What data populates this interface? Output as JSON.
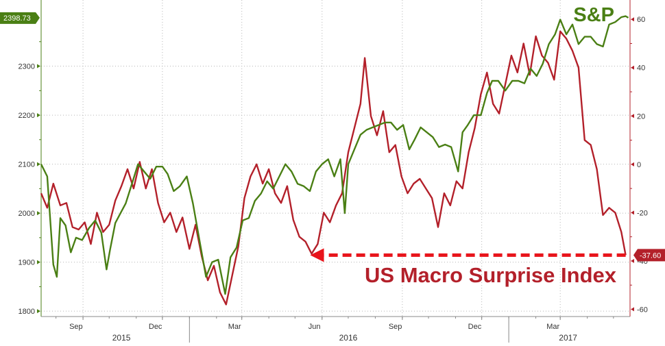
{
  "chart_data": {
    "type": "line",
    "title": "",
    "x_range": [
      "2015-07-15",
      "2017-05-20"
    ],
    "left_axis": {
      "ticks": [
        1800,
        1900,
        2000,
        2100,
        2200,
        2300
      ],
      "ylim": [
        1789,
        2435
      ]
    },
    "right_axis": {
      "ticks": [
        -60,
        -40,
        -20,
        0,
        20,
        40,
        60
      ],
      "ylim": [
        -63,
        68
      ]
    },
    "x_month_labels": [
      {
        "date": "2015-09-01",
        "label": "Sep"
      },
      {
        "date": "2015-12-01",
        "label": "Dec"
      },
      {
        "date": "2016-03-01",
        "label": "Mar"
      },
      {
        "date": "2016-06-01",
        "label": "Jun"
      },
      {
        "date": "2016-09-01",
        "label": "Sep"
      },
      {
        "date": "2016-12-01",
        "label": "Dec"
      },
      {
        "date": "2017-03-01",
        "label": "Mar"
      }
    ],
    "x_year_labels": [
      {
        "date": "2015-10-15",
        "label": "2015"
      },
      {
        "date": "2016-07-01",
        "label": "2016"
      },
      {
        "date": "2017-03-10",
        "label": "2017"
      }
    ],
    "year_boundaries": [
      "2016-01-01",
      "2017-01-01"
    ],
    "grid": true,
    "series": [
      {
        "name": "S&P",
        "axis": "left",
        "color": "#4a7f14",
        "last_value_label": "2398.73",
        "points": [
          [
            "2015-07-15",
            2100
          ],
          [
            "2015-07-22",
            2075
          ],
          [
            "2015-07-29",
            1895
          ],
          [
            "2015-08-02",
            1870
          ],
          [
            "2015-08-06",
            1990
          ],
          [
            "2015-08-12",
            1975
          ],
          [
            "2015-08-18",
            1920
          ],
          [
            "2015-08-24",
            1950
          ],
          [
            "2015-08-31",
            1945
          ],
          [
            "2015-09-08",
            1970
          ],
          [
            "2015-09-15",
            1985
          ],
          [
            "2015-09-22",
            1960
          ],
          [
            "2015-09-28",
            1885
          ],
          [
            "2015-10-02",
            1925
          ],
          [
            "2015-10-08",
            1980
          ],
          [
            "2015-10-14",
            2000
          ],
          [
            "2015-10-20",
            2020
          ],
          [
            "2015-10-28",
            2065
          ],
          [
            "2015-11-03",
            2100
          ],
          [
            "2015-11-10",
            2085
          ],
          [
            "2015-11-17",
            2070
          ],
          [
            "2015-11-24",
            2095
          ],
          [
            "2015-12-01",
            2095
          ],
          [
            "2015-12-07",
            2080
          ],
          [
            "2015-12-14",
            2045
          ],
          [
            "2015-12-21",
            2055
          ],
          [
            "2015-12-29",
            2075
          ],
          [
            "2016-01-05",
            2020
          ],
          [
            "2016-01-12",
            1950
          ],
          [
            "2016-01-20",
            1870
          ],
          [
            "2016-01-27",
            1900
          ],
          [
            "2016-02-03",
            1905
          ],
          [
            "2016-02-11",
            1835
          ],
          [
            "2016-02-17",
            1910
          ],
          [
            "2016-02-24",
            1930
          ],
          [
            "2016-03-02",
            1985
          ],
          [
            "2016-03-09",
            1990
          ],
          [
            "2016-03-16",
            2025
          ],
          [
            "2016-03-23",
            2040
          ],
          [
            "2016-03-30",
            2065
          ],
          [
            "2016-04-06",
            2050
          ],
          [
            "2016-04-13",
            2075
          ],
          [
            "2016-04-20",
            2100
          ],
          [
            "2016-04-27",
            2085
          ],
          [
            "2016-05-04",
            2060
          ],
          [
            "2016-05-11",
            2055
          ],
          [
            "2016-05-18",
            2045
          ],
          [
            "2016-05-25",
            2085
          ],
          [
            "2016-06-01",
            2100
          ],
          [
            "2016-06-08",
            2110
          ],
          [
            "2016-06-15",
            2075
          ],
          [
            "2016-06-22",
            2110
          ],
          [
            "2016-06-27",
            2000
          ],
          [
            "2016-07-01",
            2100
          ],
          [
            "2016-07-08",
            2130
          ],
          [
            "2016-07-15",
            2160
          ],
          [
            "2016-07-22",
            2170
          ],
          [
            "2016-07-29",
            2175
          ],
          [
            "2016-08-05",
            2180
          ],
          [
            "2016-08-12",
            2185
          ],
          [
            "2016-08-19",
            2185
          ],
          [
            "2016-08-26",
            2170
          ],
          [
            "2016-09-02",
            2180
          ],
          [
            "2016-09-09",
            2130
          ],
          [
            "2016-09-15",
            2150
          ],
          [
            "2016-09-22",
            2175
          ],
          [
            "2016-09-29",
            2165
          ],
          [
            "2016-10-06",
            2155
          ],
          [
            "2016-10-13",
            2135
          ],
          [
            "2016-10-20",
            2140
          ],
          [
            "2016-10-27",
            2135
          ],
          [
            "2016-11-04",
            2085
          ],
          [
            "2016-11-09",
            2165
          ],
          [
            "2016-11-15",
            2180
          ],
          [
            "2016-11-22",
            2200
          ],
          [
            "2016-11-30",
            2200
          ],
          [
            "2016-12-07",
            2245
          ],
          [
            "2016-12-13",
            2270
          ],
          [
            "2016-12-20",
            2270
          ],
          [
            "2016-12-28",
            2250
          ],
          [
            "2017-01-05",
            2270
          ],
          [
            "2017-01-12",
            2270
          ],
          [
            "2017-01-19",
            2265
          ],
          [
            "2017-01-26",
            2295
          ],
          [
            "2017-02-02",
            2280
          ],
          [
            "2017-02-09",
            2305
          ],
          [
            "2017-02-16",
            2345
          ],
          [
            "2017-02-23",
            2365
          ],
          [
            "2017-03-01",
            2395
          ],
          [
            "2017-03-08",
            2365
          ],
          [
            "2017-03-15",
            2385
          ],
          [
            "2017-03-22",
            2345
          ],
          [
            "2017-03-29",
            2360
          ],
          [
            "2017-04-05",
            2360
          ],
          [
            "2017-04-12",
            2345
          ],
          [
            "2017-04-19",
            2340
          ],
          [
            "2017-04-26",
            2385
          ],
          [
            "2017-05-03",
            2390
          ],
          [
            "2017-05-10",
            2400
          ],
          [
            "2017-05-15",
            2402
          ],
          [
            "2017-05-18",
            2398.73
          ]
        ]
      },
      {
        "name": "US Macro Surprise Index",
        "axis": "right",
        "color": "#b3202a",
        "last_value_label": "-37.60",
        "points": [
          [
            "2015-07-15",
            -12
          ],
          [
            "2015-07-22",
            -18
          ],
          [
            "2015-07-29",
            -8
          ],
          [
            "2015-08-06",
            -17
          ],
          [
            "2015-08-13",
            -16
          ],
          [
            "2015-08-20",
            -26
          ],
          [
            "2015-08-27",
            -27
          ],
          [
            "2015-09-03",
            -24
          ],
          [
            "2015-09-10",
            -33
          ],
          [
            "2015-09-17",
            -20
          ],
          [
            "2015-09-24",
            -28
          ],
          [
            "2015-10-01",
            -25
          ],
          [
            "2015-10-08",
            -15
          ],
          [
            "2015-10-15",
            -9
          ],
          [
            "2015-10-22",
            -2
          ],
          [
            "2015-10-29",
            -10
          ],
          [
            "2015-11-05",
            1
          ],
          [
            "2015-11-12",
            -10
          ],
          [
            "2015-11-19",
            -2
          ],
          [
            "2015-11-26",
            -16
          ],
          [
            "2015-12-03",
            -24
          ],
          [
            "2015-12-10",
            -20
          ],
          [
            "2015-12-17",
            -28
          ],
          [
            "2015-12-24",
            -22
          ],
          [
            "2016-01-01",
            -35
          ],
          [
            "2016-01-08",
            -25
          ],
          [
            "2016-01-15",
            -38
          ],
          [
            "2016-01-22",
            -48
          ],
          [
            "2016-01-29",
            -42
          ],
          [
            "2016-02-05",
            -53
          ],
          [
            "2016-02-12",
            -58
          ],
          [
            "2016-02-19",
            -46
          ],
          [
            "2016-02-26",
            -34
          ],
          [
            "2016-03-04",
            -14
          ],
          [
            "2016-03-11",
            -5
          ],
          [
            "2016-03-18",
            0
          ],
          [
            "2016-03-25",
            -8
          ],
          [
            "2016-04-01",
            -2
          ],
          [
            "2016-04-08",
            -12
          ],
          [
            "2016-04-15",
            -16
          ],
          [
            "2016-04-22",
            -9
          ],
          [
            "2016-04-29",
            -23
          ],
          [
            "2016-05-06",
            -30
          ],
          [
            "2016-05-13",
            -32
          ],
          [
            "2016-05-20",
            -37
          ],
          [
            "2016-05-27",
            -33
          ],
          [
            "2016-06-03",
            -20
          ],
          [
            "2016-06-10",
            -24
          ],
          [
            "2016-06-17",
            -17
          ],
          [
            "2016-06-24",
            -12
          ],
          [
            "2016-07-01",
            5
          ],
          [
            "2016-07-08",
            15
          ],
          [
            "2016-07-15",
            25
          ],
          [
            "2016-07-20",
            44
          ],
          [
            "2016-07-27",
            20
          ],
          [
            "2016-08-03",
            12
          ],
          [
            "2016-08-10",
            22
          ],
          [
            "2016-08-17",
            5
          ],
          [
            "2016-08-24",
            8
          ],
          [
            "2016-08-31",
            -5
          ],
          [
            "2016-09-07",
            -12
          ],
          [
            "2016-09-14",
            -8
          ],
          [
            "2016-09-21",
            -6
          ],
          [
            "2016-09-28",
            -10
          ],
          [
            "2016-10-05",
            -14
          ],
          [
            "2016-10-12",
            -26
          ],
          [
            "2016-10-19",
            -12
          ],
          [
            "2016-10-26",
            -17
          ],
          [
            "2016-11-02",
            -7
          ],
          [
            "2016-11-09",
            -10
          ],
          [
            "2016-11-16",
            5
          ],
          [
            "2016-11-23",
            15
          ],
          [
            "2016-11-30",
            29
          ],
          [
            "2016-12-07",
            38
          ],
          [
            "2016-12-14",
            25
          ],
          [
            "2016-12-21",
            21
          ],
          [
            "2016-12-28",
            33
          ],
          [
            "2017-01-04",
            45
          ],
          [
            "2017-01-11",
            38
          ],
          [
            "2017-01-18",
            50
          ],
          [
            "2017-01-25",
            37
          ],
          [
            "2017-02-01",
            53
          ],
          [
            "2017-02-08",
            45
          ],
          [
            "2017-02-15",
            42
          ],
          [
            "2017-02-22",
            35
          ],
          [
            "2017-03-01",
            55
          ],
          [
            "2017-03-08",
            52
          ],
          [
            "2017-03-15",
            47
          ],
          [
            "2017-03-22",
            40
          ],
          [
            "2017-03-29",
            10
          ],
          [
            "2017-04-05",
            8
          ],
          [
            "2017-04-12",
            -2
          ],
          [
            "2017-04-19",
            -21
          ],
          [
            "2017-04-26",
            -18
          ],
          [
            "2017-05-03",
            -20
          ],
          [
            "2017-05-10",
            -28
          ],
          [
            "2017-05-15",
            -37.6
          ]
        ]
      }
    ],
    "annotations": [
      {
        "text": "S&P",
        "series": "S&P"
      },
      {
        "text": "US Macro Surprise Index",
        "series": "US Macro Surprise Index",
        "arrow": "dashed",
        "arrow_from": [
          "2017-05-15",
          -37.6
        ],
        "arrow_to": [
          "2016-05-20",
          -37.6
        ]
      }
    ]
  }
}
